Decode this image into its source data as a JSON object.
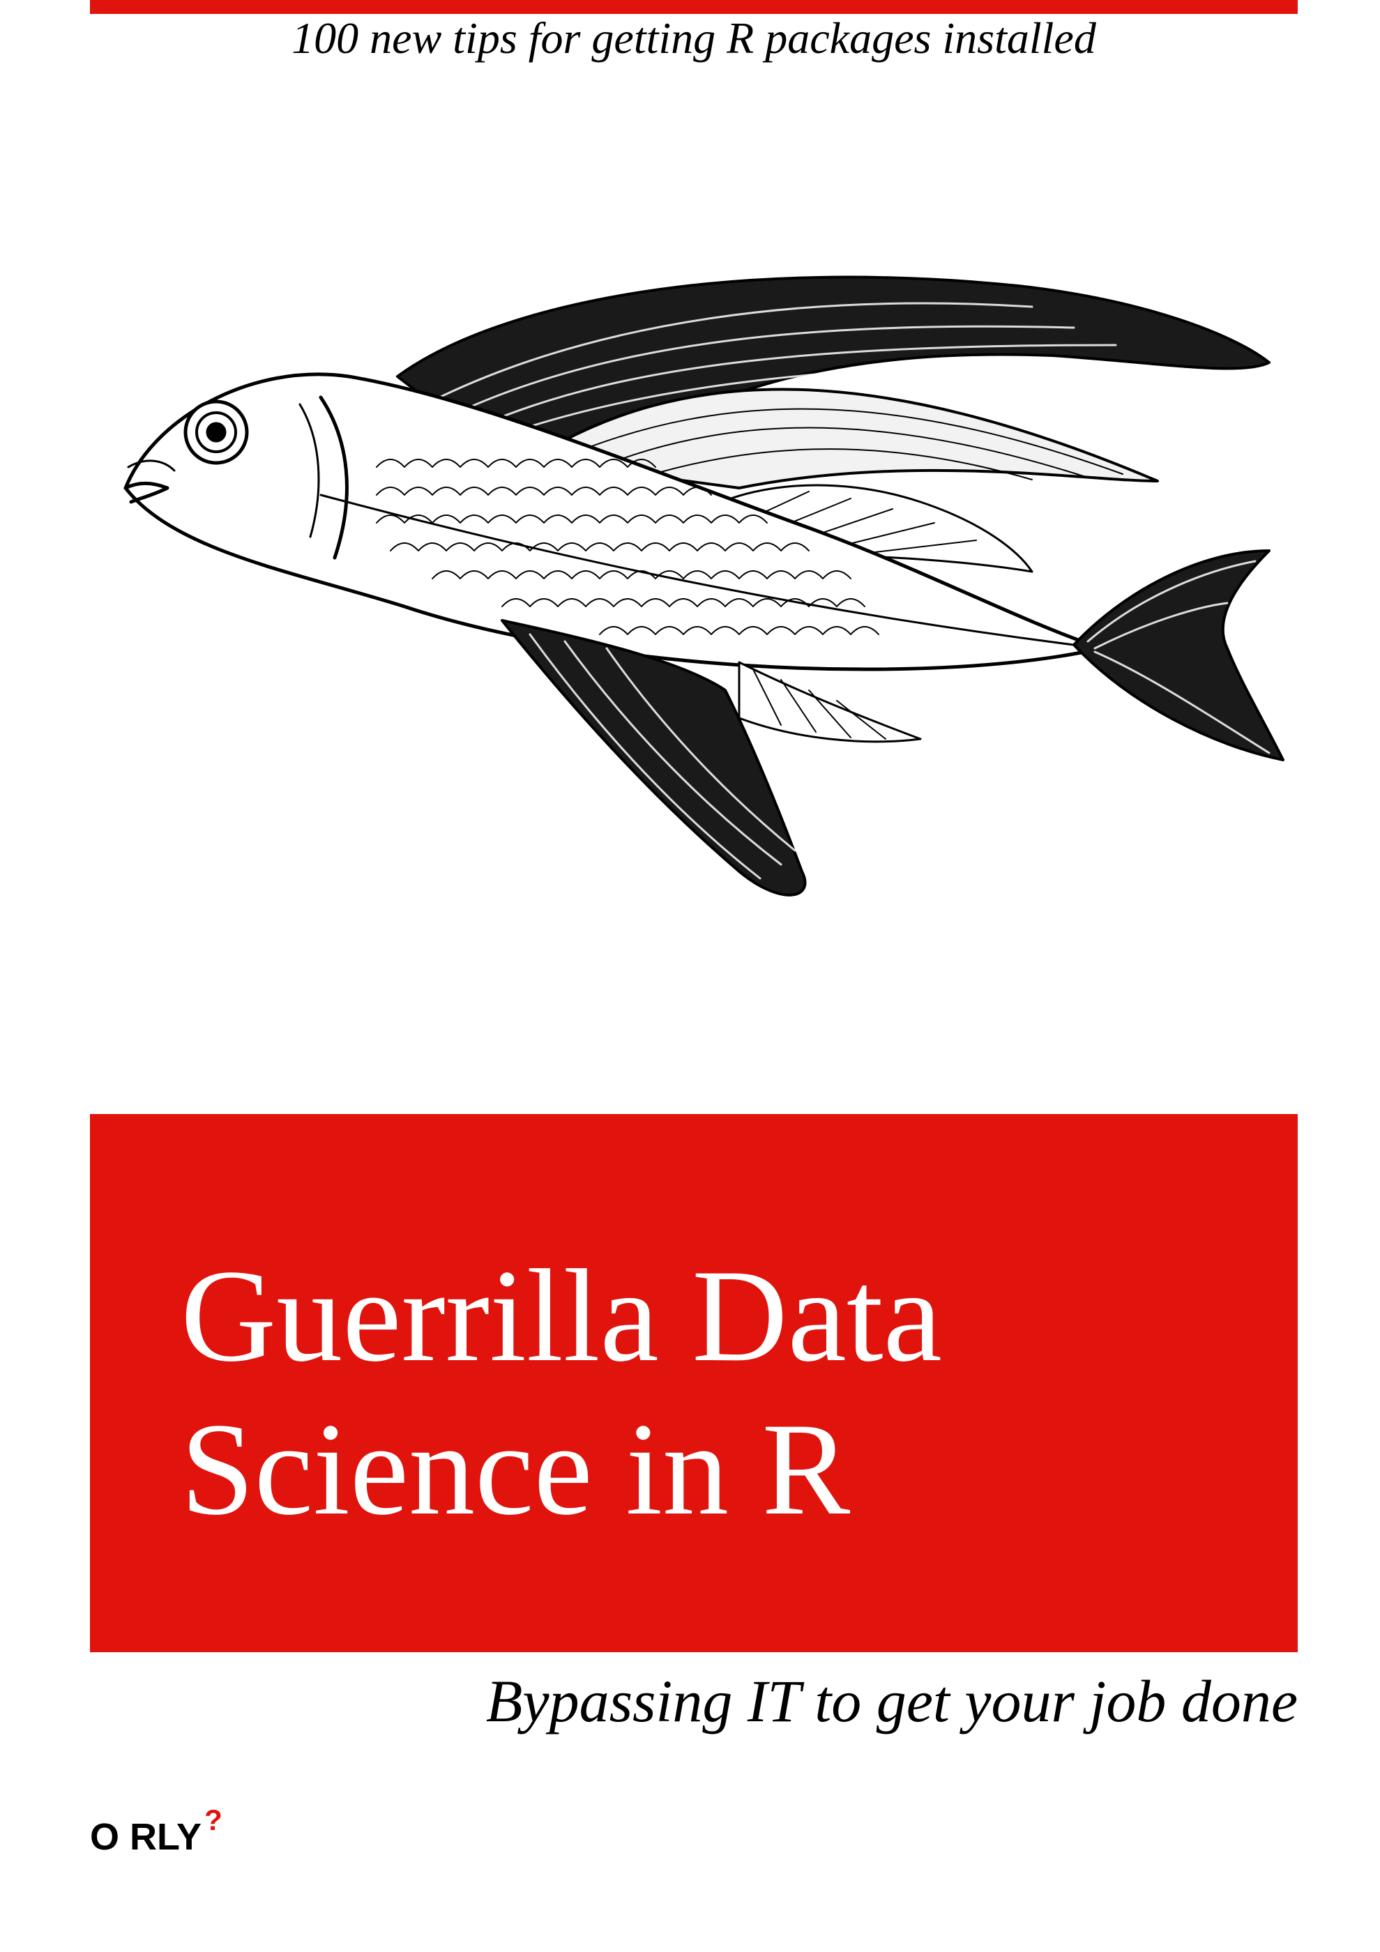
{
  "cover": {
    "top_subtitle": "100 new tips for getting R packages installed",
    "title": "Guerrilla Data\nScience in R",
    "tagline": "Bypassing IT to get your job done",
    "publisher": "O RLY",
    "publisher_mark": "?",
    "accent_color": "#e0130d",
    "illustration_icon": "flying-fish-engraving"
  }
}
